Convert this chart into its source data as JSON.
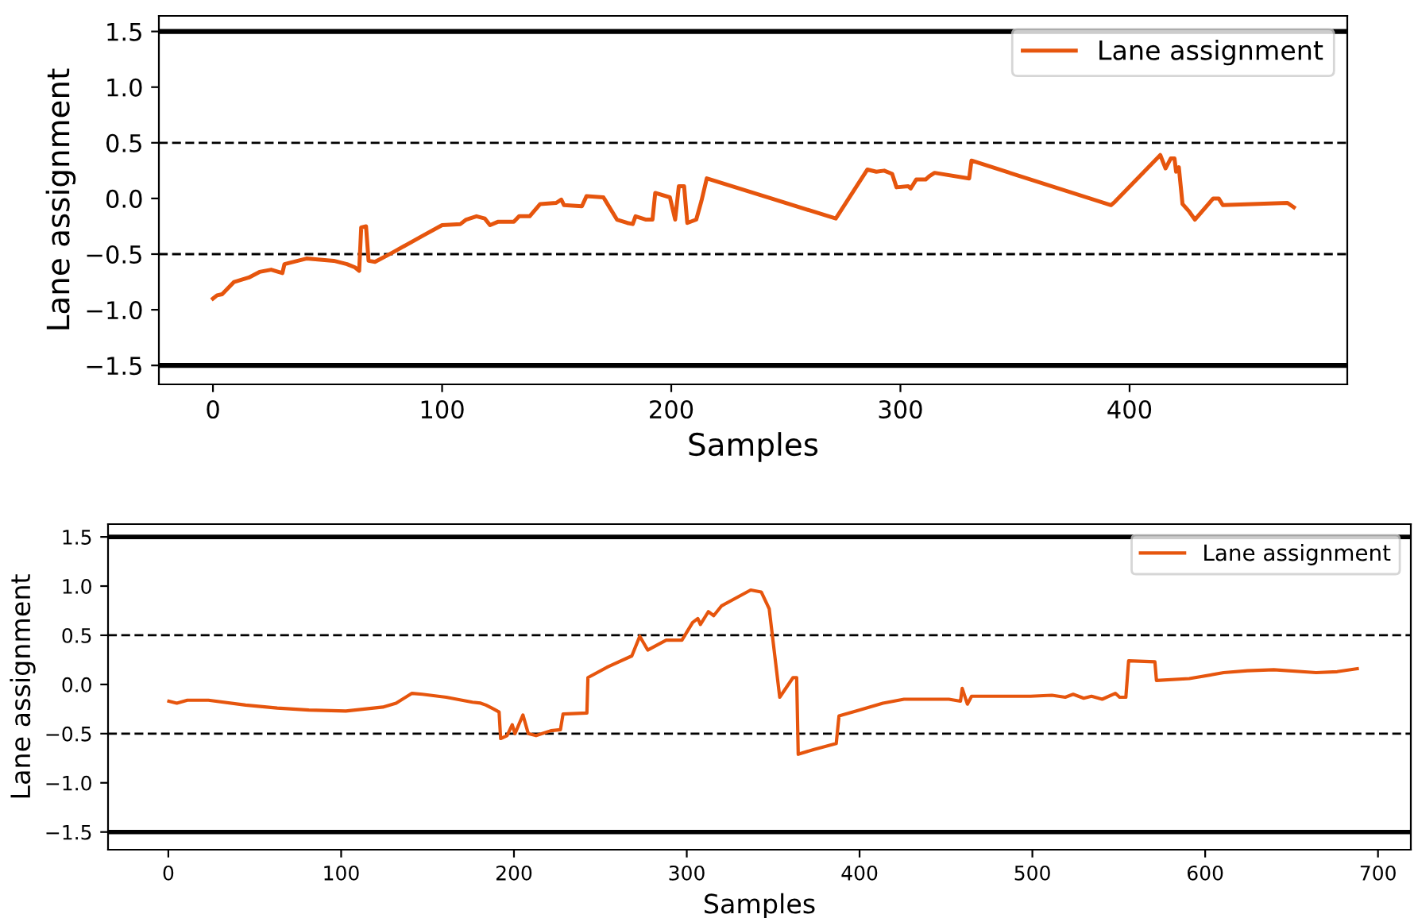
{
  "chart_data": [
    {
      "type": "line",
      "xlabel": "Samples",
      "ylabel": "Lane assignment",
      "xlim": [
        -23.6,
        495
      ],
      "ylim": [
        -1.67,
        1.64
      ],
      "xticks": [
        0,
        100,
        200,
        300,
        400
      ],
      "yticks": [
        {
          "value": -1.5,
          "label": "−1.5"
        },
        {
          "value": -1,
          "label": "−1.0"
        },
        {
          "value": -0.5,
          "label": "−0.5"
        },
        {
          "value": 0,
          "label": "0.0"
        },
        {
          "value": 0.5,
          "label": "0.5"
        },
        {
          "value": 1,
          "label": "1.0"
        },
        {
          "value": 1.5,
          "label": "1.5"
        }
      ],
      "legend": "top right",
      "grid": false,
      "ref_lines": [
        {
          "axis": "y",
          "value": 1.5,
          "line_style": "solid",
          "color": "#000000"
        },
        {
          "axis": "y",
          "value": -1.5,
          "line_style": "solid",
          "color": "#000000"
        },
        {
          "axis": "y",
          "value": 0.5,
          "line_style": "dashed",
          "color": "#000000"
        },
        {
          "axis": "y",
          "value": -0.5,
          "line_style": "dashed",
          "color": "#000000"
        }
      ],
      "series": [
        {
          "name": "Lane assignment",
          "color": "#e6550d",
          "x": [
            0,
            1.8,
            4,
            9.2,
            15.7,
            20.3,
            25.4,
            30.3,
            31.2,
            40.8,
            52.7,
            58.5,
            62,
            63.8,
            64.7,
            66.8,
            67.9,
            70.7,
            78,
            92,
            100,
            108,
            110.5,
            115,
            118.6,
            120.9,
            124.3,
            131.3,
            133.6,
            138.2,
            142.8,
            149.8,
            152,
            153.2,
            161,
            163,
            170.4,
            176.3,
            180.8,
            183.2,
            184.4,
            189,
            191.8,
            193,
            199.4,
            201.7,
            203.3,
            205.6,
            207,
            210.9,
            213.2,
            215.5,
            271.8,
            285.6,
            289.5,
            292.9,
            296.4,
            298.3,
            303.4,
            304.5,
            306.9,
            311,
            312.6,
            314.9,
            330,
            331,
            391.9,
            393.6,
            413.4,
            415.7,
            418,
            419.6,
            420.3,
            421.5,
            423.1,
            426.1,
            428.5,
            436.5,
            438.9,
            440.7,
            468.9,
            471.7
          ],
          "values": [
            -0.9,
            -0.87,
            -0.86,
            -0.75,
            -0.71,
            -0.66,
            -0.64,
            -0.67,
            -0.59,
            -0.54,
            -0.56,
            -0.59,
            -0.62,
            -0.65,
            -0.26,
            -0.25,
            -0.56,
            -0.57,
            -0.49,
            -0.33,
            -0.24,
            -0.23,
            -0.19,
            -0.16,
            -0.18,
            -0.24,
            -0.21,
            -0.21,
            -0.16,
            -0.16,
            -0.05,
            -0.04,
            -0.01,
            -0.06,
            -0.07,
            0.02,
            0.01,
            -0.19,
            -0.22,
            -0.23,
            -0.16,
            -0.19,
            -0.19,
            0.05,
            0.01,
            -0.19,
            0.11,
            0.11,
            -0.22,
            -0.19,
            -0.02,
            0.18,
            -0.18,
            0.26,
            0.24,
            0.25,
            0.22,
            0.1,
            0.11,
            0.09,
            0.17,
            0.17,
            0.2,
            0.23,
            0.18,
            0.34,
            -0.06,
            -0.03,
            0.39,
            0.27,
            0.36,
            0.36,
            0.24,
            0.28,
            -0.05,
            -0.12,
            -0.19,
            0.0,
            0.0,
            -0.06,
            -0.04,
            -0.08
          ]
        }
      ]
    },
    {
      "type": "line",
      "xlabel": "Samples",
      "ylabel": "Lane assignment",
      "xlim": [
        -34.9,
        719
      ],
      "ylim": [
        -1.68,
        1.63
      ],
      "xticks": [
        0,
        100,
        200,
        300,
        400,
        500,
        600,
        700
      ],
      "yticks": [
        {
          "value": -1.5,
          "label": "−1.5"
        },
        {
          "value": -1,
          "label": "−1.0"
        },
        {
          "value": -0.5,
          "label": "−0.5"
        },
        {
          "value": 0,
          "label": "0.0"
        },
        {
          "value": 0.5,
          "label": "0.5"
        },
        {
          "value": 1,
          "label": "1.0"
        },
        {
          "value": 1.5,
          "label": "1.5"
        }
      ],
      "legend": "top right",
      "grid": false,
      "ref_lines": [
        {
          "axis": "y",
          "value": 1.5,
          "line_style": "solid",
          "color": "#000000"
        },
        {
          "axis": "y",
          "value": -1.5,
          "line_style": "solid",
          "color": "#000000"
        },
        {
          "axis": "y",
          "value": 0.5,
          "line_style": "dashed",
          "color": "#000000"
        },
        {
          "axis": "y",
          "value": -0.5,
          "line_style": "dashed",
          "color": "#000000"
        }
      ],
      "series": [
        {
          "name": "Lane assignment",
          "color": "#e6550d",
          "x": [
            0.3,
            4.9,
            11,
            23.2,
            44.7,
            63,
            81.3,
            102.7,
            124.1,
            131.8,
            141,
            147,
            160.8,
            176,
            180.7,
            183.8,
            188.3,
            191.4,
            192.3,
            196,
            199,
            200.6,
            205.2,
            208.3,
            212.8,
            221.4,
            226.9,
            228.4,
            242.2,
            242.8,
            254.4,
            268.2,
            272.8,
            277.4,
            288.1,
            297.2,
            303.4,
            306.4,
            307.9,
            312.5,
            315.6,
            320.2,
            337,
            343.1,
            347.7,
            353.8,
            361.5,
            363.6,
            364.5,
            373.7,
            386.5,
            388.1,
            398.2,
            413.5,
            425.7,
            451.7,
            458.4,
            459.4,
            462.4,
            464.8,
            470,
            480.7,
            499,
            511.3,
            519,
            523.6,
            529.7,
            534.2,
            540.4,
            548,
            550.5,
            554.1,
            555.7,
            570.9,
            571.8,
            590.8,
            610.7,
            624.5,
            639.7,
            664.2,
            676.4,
            688
          ],
          "values": [
            -0.17,
            -0.19,
            -0.16,
            -0.16,
            -0.21,
            -0.24,
            -0.26,
            -0.27,
            -0.23,
            -0.19,
            -0.09,
            -0.1,
            -0.13,
            -0.18,
            -0.19,
            -0.21,
            -0.25,
            -0.28,
            -0.55,
            -0.52,
            -0.41,
            -0.5,
            -0.31,
            -0.5,
            -0.52,
            -0.47,
            -0.46,
            -0.3,
            -0.29,
            0.07,
            0.18,
            0.29,
            0.49,
            0.35,
            0.45,
            0.45,
            0.63,
            0.67,
            0.61,
            0.74,
            0.7,
            0.8,
            0.96,
            0.94,
            0.77,
            -0.13,
            0.07,
            0.07,
            -0.71,
            -0.66,
            -0.6,
            -0.32,
            -0.27,
            -0.19,
            -0.15,
            -0.15,
            -0.17,
            -0.04,
            -0.2,
            -0.12,
            -0.12,
            -0.12,
            -0.12,
            -0.11,
            -0.13,
            -0.1,
            -0.14,
            -0.12,
            -0.15,
            -0.09,
            -0.13,
            -0.13,
            0.24,
            0.23,
            0.04,
            0.06,
            0.12,
            0.14,
            0.15,
            0.12,
            0.13,
            0.16
          ]
        }
      ]
    }
  ]
}
